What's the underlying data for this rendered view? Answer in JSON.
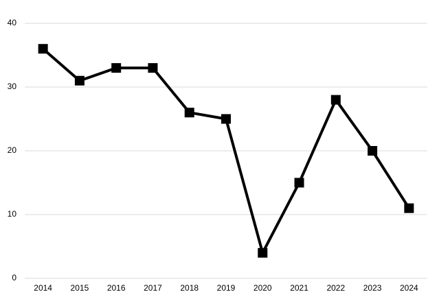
{
  "chart_data": {
    "type": "line",
    "categories": [
      "2014",
      "2015",
      "2016",
      "2017",
      "2018",
      "2019",
      "2020",
      "2021",
      "2022",
      "2023",
      "2024"
    ],
    "values": [
      36,
      31,
      33,
      33,
      26,
      25,
      4,
      15,
      28,
      20,
      11
    ],
    "color": "#000000",
    "ylim": [
      0,
      40
    ],
    "yticks": [
      0,
      10,
      20,
      30,
      40
    ],
    "grid": true
  }
}
